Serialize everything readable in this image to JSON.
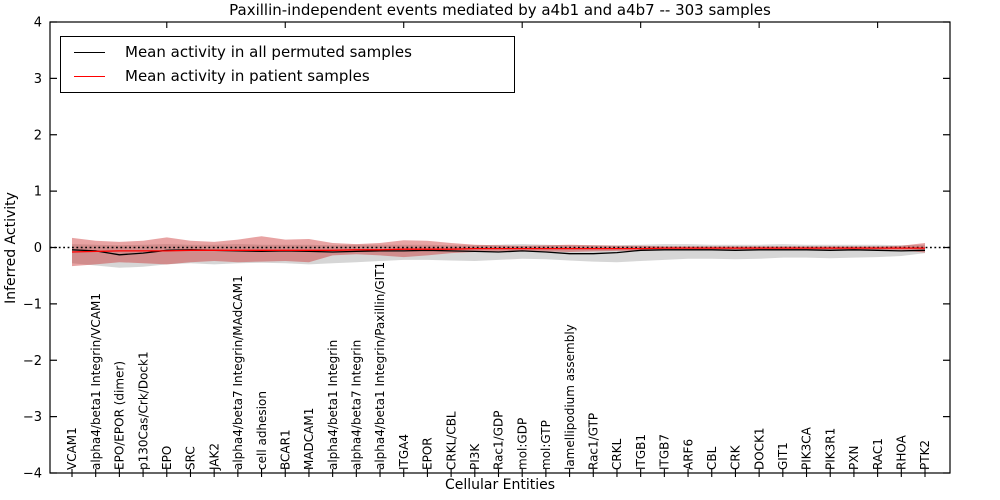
{
  "chart_data": {
    "type": "line",
    "title": "Paxillin-independent events mediated by a4b1 and a4b7 -- 303 samples",
    "xlabel": "Cellular Entities",
    "ylabel": "Inferred Activity",
    "ylim": [
      -4,
      4
    ],
    "yticks": [
      4,
      3,
      2,
      1,
      0,
      -1,
      -2,
      -3,
      -4
    ],
    "x_tick_rotation": 90,
    "grid": false,
    "legend_position": "upper left",
    "categories": [
      "VCAM1",
      "alpha4/beta1 Integrin/VCAM1",
      "EPO/EPOR (dimer)",
      "p130Cas/Crk/Dock1",
      "EPO",
      "SRC",
      "JAK2",
      "alpha4/beta7 Integrin/MAdCAM1",
      "cell adhesion",
      "BCAR1",
      "MADCAM1",
      "alpha4/beta1 Integrin",
      "alpha4/beta7 Integrin",
      "alpha4/beta1 Integrin/Paxillin/GIT1",
      "ITGA4",
      "EPOR",
      "CRKL/CBL",
      "PI3K",
      "Rac1/GDP",
      "mol:GDP",
      "mol:GTP",
      "lamellipodium assembly",
      "Rac1/GTP",
      "CRKL",
      "ITGB1",
      "ITGB7",
      "ARF6",
      "CBL",
      "CRK",
      "DOCK1",
      "GIT1",
      "PIK3CA",
      "PIK3R1",
      "PXN",
      "RAC1",
      "RHOA",
      "PTK2"
    ],
    "series": [
      {
        "name": "Mean activity in all permuted samples",
        "color": "#000000",
        "values": [
          -0.04,
          -0.06,
          -0.13,
          -0.1,
          -0.05,
          -0.04,
          -0.05,
          -0.06,
          -0.07,
          -0.06,
          -0.07,
          -0.08,
          -0.07,
          -0.06,
          -0.06,
          -0.05,
          -0.06,
          -0.07,
          -0.08,
          -0.06,
          -0.08,
          -0.11,
          -0.11,
          -0.09,
          -0.05,
          -0.04,
          -0.04,
          -0.04,
          -0.05,
          -0.04,
          -0.04,
          -0.04,
          -0.05,
          -0.04,
          -0.05,
          -0.06,
          -0.05
        ]
      },
      {
        "name": "Mean activity in patient samples",
        "color": "#ff0000",
        "values": [
          -0.08,
          -0.07,
          -0.06,
          -0.06,
          -0.06,
          -0.05,
          -0.05,
          -0.05,
          -0.05,
          -0.05,
          -0.05,
          -0.05,
          -0.04,
          -0.04,
          -0.03,
          -0.03,
          -0.03,
          -0.02,
          -0.02,
          -0.02,
          -0.02,
          -0.02,
          -0.02,
          -0.02,
          -0.02,
          -0.01,
          -0.01,
          -0.01,
          -0.01,
          -0.01,
          -0.01,
          -0.01,
          -0.01,
          -0.01,
          -0.01,
          -0.01,
          -0.01
        ]
      }
    ],
    "bands": [
      {
        "name": "permuted samples range",
        "color": "#999999",
        "opacity": 0.4,
        "upper": [
          0.06,
          0.05,
          0.04,
          0.05,
          0.06,
          0.05,
          0.05,
          0.06,
          0.05,
          0.05,
          0.05,
          0.04,
          0.05,
          0.05,
          0.05,
          0.05,
          0.04,
          0.04,
          0.05,
          0.06,
          0.05,
          0.04,
          0.04,
          0.04,
          0.05,
          0.06,
          0.06,
          0.05,
          0.05,
          0.05,
          0.06,
          0.05,
          0.05,
          0.05,
          0.05,
          0.04,
          0.05
        ],
        "lower": [
          -0.28,
          -0.32,
          -0.36,
          -0.34,
          -0.3,
          -0.28,
          -0.3,
          -0.28,
          -0.27,
          -0.28,
          -0.3,
          -0.28,
          -0.26,
          -0.24,
          -0.22,
          -0.22,
          -0.23,
          -0.24,
          -0.22,
          -0.2,
          -0.21,
          -0.23,
          -0.25,
          -0.26,
          -0.24,
          -0.22,
          -0.2,
          -0.2,
          -0.21,
          -0.2,
          -0.18,
          -0.18,
          -0.19,
          -0.18,
          -0.17,
          -0.15,
          -0.1
        ]
      },
      {
        "name": "patient samples range",
        "color": "#cc3333",
        "opacity": 0.45,
        "upper": [
          0.17,
          0.12,
          0.1,
          0.12,
          0.18,
          0.12,
          0.1,
          0.14,
          0.2,
          0.14,
          0.15,
          0.08,
          0.06,
          0.08,
          0.13,
          0.12,
          0.08,
          0.05,
          0.04,
          0.03,
          0.04,
          0.05,
          0.04,
          0.03,
          0.03,
          0.02,
          0.02,
          0.02,
          0.02,
          0.02,
          0.02,
          0.02,
          0.02,
          0.02,
          0.02,
          0.03,
          0.08
        ],
        "lower": [
          -0.33,
          -0.3,
          -0.26,
          -0.28,
          -0.3,
          -0.26,
          -0.24,
          -0.26,
          -0.25,
          -0.24,
          -0.26,
          -0.14,
          -0.12,
          -0.14,
          -0.17,
          -0.14,
          -0.1,
          -0.08,
          -0.07,
          -0.07,
          -0.07,
          -0.08,
          -0.07,
          -0.06,
          -0.06,
          -0.05,
          -0.04,
          -0.04,
          -0.04,
          -0.04,
          -0.04,
          -0.04,
          -0.04,
          -0.04,
          -0.04,
          -0.05,
          -0.09
        ]
      }
    ],
    "zero_line": {
      "y": 0,
      "style": "dotted",
      "color": "#000000"
    }
  }
}
